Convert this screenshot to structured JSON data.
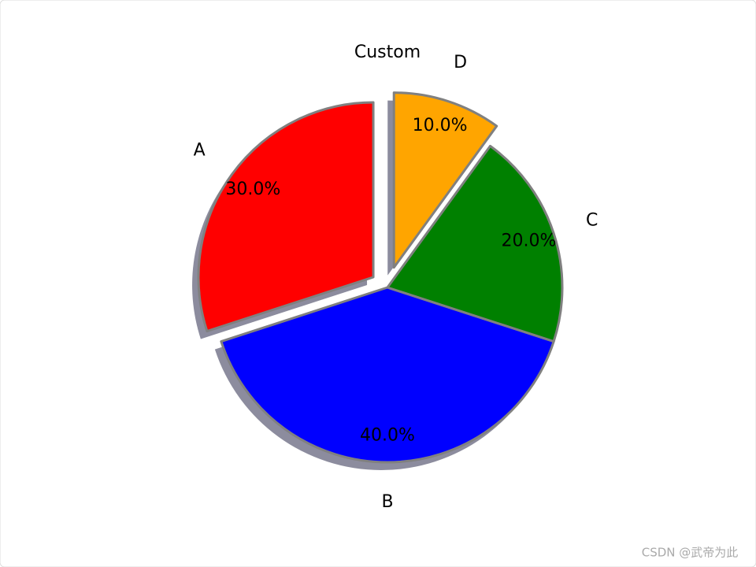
{
  "chart_data": {
    "type": "pie",
    "title": "Custom",
    "categories": [
      "A",
      "B",
      "C",
      "D"
    ],
    "values": [
      30,
      40,
      20,
      10
    ],
    "value_labels": [
      "30.0%",
      "40.0%",
      "20.0%",
      "10.0%"
    ],
    "colors": [
      "red",
      "blue",
      "green",
      "orange"
    ],
    "explode": [
      0.1,
      0,
      0,
      0.12
    ],
    "start_angle": 90,
    "shadow": true
  },
  "watermark": "CSDN @武帝为此"
}
